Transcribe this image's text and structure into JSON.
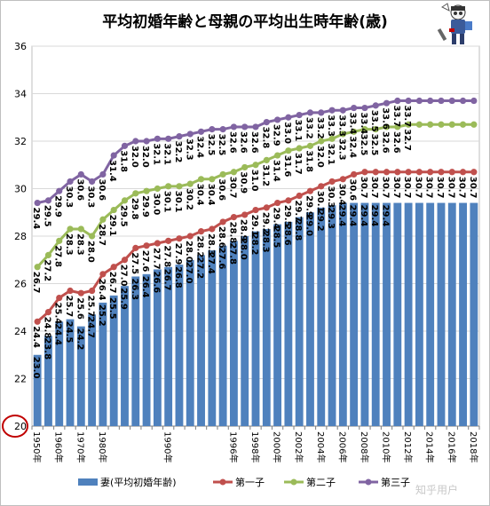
{
  "chart_data": {
    "type": "bar+line",
    "title": "平均初婚年齢と母親の平均出生時年齢(歳)",
    "xlabel": "",
    "ylabel": "",
    "ylim": [
      20,
      36
    ],
    "yticks": [
      20,
      22,
      24,
      26,
      28,
      30,
      32,
      34,
      36
    ],
    "highlighted_ytick": 20,
    "grid": true,
    "legend_position": "bottom",
    "categories": [
      1950,
      1955,
      1960,
      1965,
      1970,
      1975,
      1980,
      1985,
      1986,
      1987,
      1988,
      1989,
      1990,
      1991,
      1992,
      1993,
      1994,
      1995,
      1996,
      1997,
      1998,
      1999,
      2000,
      2001,
      2002,
      2003,
      2004,
      2005,
      2006,
      2007,
      2008,
      2009,
      2010,
      2011,
      2012,
      2013,
      2014,
      2015,
      2016,
      2017,
      2018
    ],
    "x_tick_labels": [
      "1950年",
      "1960年",
      "1970年",
      "1980年",
      "1990年",
      "1996年",
      "1998年",
      "2000年",
      "2002年",
      "2004年",
      "2006年",
      "2008年",
      "2010年",
      "2012年",
      "2014年",
      "2016年",
      "2018年"
    ],
    "bar_series": {
      "name": "妻(平均初婚年齢)",
      "color": "#4f81bd",
      "values": [
        23.0,
        23.8,
        24.4,
        24.5,
        24.2,
        24.7,
        25.2,
        25.5,
        25.9,
        26.3,
        26.4,
        26.6,
        26.7,
        26.8,
        27.0,
        27.2,
        27.4,
        27.6,
        27.8,
        28.0,
        28.2,
        28.3,
        28.5,
        28.6,
        28.8,
        29.0,
        29.2,
        29.3,
        29.4,
        29.4,
        29.4,
        29.4,
        29.4,
        29.4,
        29.4,
        29.4,
        29.4,
        29.4,
        29.4,
        29.4,
        29.4
      ],
      "labels": [
        "23.0",
        "23.8",
        "24.4",
        "24.5",
        "24.2",
        "24.7",
        "25.2",
        "25.5",
        "25.9",
        "26.3",
        "26.4",
        "26.6",
        "26.7",
        "26.8",
        "27.0",
        "27.2",
        "27.4",
        "27.6",
        "27.8",
        "28.0",
        "28.2",
        "28.3",
        "28.5",
        "28.6",
        "28.8",
        "29.0",
        "29.2",
        "29.3",
        "29.4",
        "29.4",
        "29.4",
        "29.4",
        "29.4",
        "",
        "",
        "",
        "",
        "",
        "",
        "",
        ""
      ]
    },
    "line_series": [
      {
        "name": "第一子",
        "color": "#c0504d",
        "values": [
          24.4,
          24.8,
          25.4,
          25.7,
          25.6,
          25.7,
          26.4,
          26.7,
          27.0,
          27.5,
          27.6,
          27.7,
          27.8,
          27.9,
          28.0,
          28.2,
          28.3,
          28.6,
          28.8,
          28.9,
          29.1,
          29.2,
          29.4,
          29.5,
          29.7,
          29.9,
          30.1,
          30.3,
          30.4,
          30.6,
          30.7,
          30.7,
          30.7,
          30.7,
          30.7,
          30.7,
          30.7,
          30.7,
          30.7,
          30.7,
          30.7
        ],
        "labels": [
          "24.4",
          "24.8",
          "25.4",
          "25.7",
          "25.6",
          "25.7",
          "26.4",
          "26.7",
          "27.0",
          "27.5",
          "27.6",
          "27.7",
          "27.8",
          "27.9",
          "28.0",
          "28.2",
          "28.3",
          "28.6",
          "28.8",
          "28.9",
          "29.1",
          "29.2",
          "29.4",
          "29.5",
          "29.7",
          "29.9",
          "30.1",
          "30.3",
          "30.4",
          "30.6",
          "30.7",
          "30.7",
          "30.7",
          "30.7",
          "30.7",
          "30.7",
          "30.7",
          "30.7",
          "30.7",
          "30.7",
          "30.7"
        ]
      },
      {
        "name": "第二子",
        "color": "#9bbb59",
        "values": [
          26.7,
          27.2,
          27.8,
          28.3,
          28.3,
          28.0,
          28.7,
          29.1,
          29.5,
          29.8,
          29.9,
          30.0,
          30.1,
          30.1,
          30.2,
          30.4,
          30.4,
          30.6,
          30.7,
          30.9,
          31.0,
          31.2,
          31.4,
          31.6,
          31.7,
          31.8,
          32.0,
          32.1,
          32.3,
          32.4,
          32.5,
          32.5,
          32.6,
          32.6,
          32.7,
          32.7,
          32.7,
          32.7,
          32.7,
          32.7,
          32.7
        ],
        "labels": [
          "26.7",
          "27.2",
          "27.8",
          "28.3",
          "28.3",
          "28.0",
          "28.7",
          "29.1",
          "29.5",
          "29.8",
          "29.9",
          "30.0",
          "30.1",
          "30.1",
          "30.2",
          "30.4",
          "30.4",
          "30.6",
          "30.7",
          "30.9",
          "31.0",
          "31.2",
          "31.4",
          "31.6",
          "31.7",
          "31.8",
          "32.0",
          "32.1",
          "32.3",
          "32.4",
          "32.5",
          "32.5",
          "32.6",
          "32.6",
          "32.7",
          "",
          "",
          "",
          "",
          "",
          ""
        ]
      },
      {
        "name": "第三子",
        "color": "#8064a2",
        "values": [
          29.4,
          29.5,
          29.9,
          30.3,
          30.6,
          30.3,
          30.6,
          31.4,
          31.8,
          32.0,
          32.0,
          32.1,
          32.1,
          32.2,
          32.3,
          32.4,
          32.5,
          32.5,
          32.6,
          32.6,
          32.6,
          32.8,
          32.9,
          33.0,
          33.1,
          33.2,
          33.2,
          33.3,
          33.3,
          33.4,
          33.4,
          33.5,
          33.6,
          33.7,
          33.7,
          33.7,
          33.7,
          33.7,
          33.7,
          33.7,
          33.7
        ],
        "labels": [
          "29.4",
          "29.5",
          "29.9",
          "30.3",
          "30.6",
          "30.3",
          "30.6",
          "31.4",
          "31.8",
          "32.0",
          "32.0",
          "32.1",
          "32.1",
          "32.2",
          "32.3",
          "32.4",
          "32.5",
          "32.5",
          "32.6",
          "32.6",
          "32.6",
          "32.8",
          "32.9",
          "33.0",
          "33.1",
          "33.2",
          "33.2",
          "33.3",
          "33.3",
          "33.4",
          "33.4",
          "33.5",
          "33.6",
          "33.7",
          "33.7",
          "",
          "",
          "",
          "",
          "",
          ""
        ]
      }
    ]
  },
  "watermark": "知乎用户",
  "mascot_icon": "otaku-mascot-icon",
  "colors": {
    "grid": "#d9d9d9",
    "axis": "#7f7f7f",
    "highlight_circle": "#c00000"
  }
}
